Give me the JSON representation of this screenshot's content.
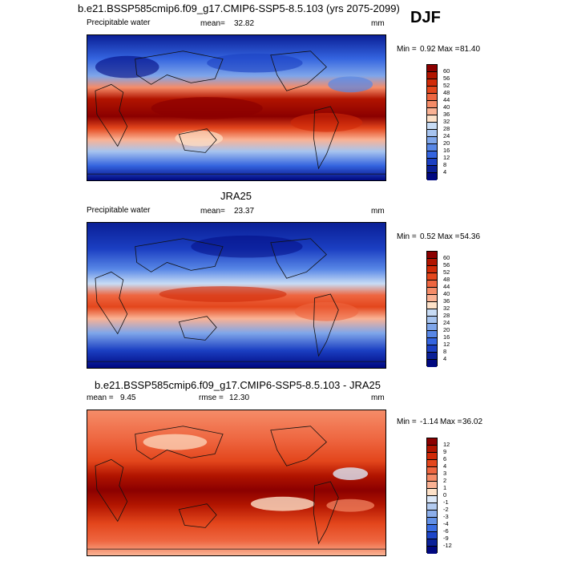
{
  "season": "DJF",
  "chart_data": [
    {
      "type": "heatmap",
      "title": "b.e21.BSSP585cmip6.f09_g17.CMIP6-SSP5-8.5.103 (yrs 2075-2099)",
      "variable": "Precipitable water",
      "stat_label": "mean=",
      "stat_value": "32.82",
      "units": "mm",
      "min_label": "Min =",
      "min_value": "0.92",
      "max_label": "Max =",
      "max_value": "81.40",
      "levels": [
        "60",
        "56",
        "52",
        "48",
        "44",
        "40",
        "36",
        "32",
        "28",
        "24",
        "20",
        "16",
        "12",
        "8",
        "4"
      ],
      "colors": [
        "#8b0000",
        "#b11400",
        "#d02a08",
        "#e3461c",
        "#ee6640",
        "#f58c68",
        "#fab294",
        "#fde1c8",
        "#c8dcf5",
        "#a7c4ef",
        "#7fa6ea",
        "#5887e6",
        "#3464df",
        "#1b3fc2",
        "#0a1f96",
        "#000880"
      ]
    },
    {
      "type": "heatmap",
      "title": "JRA25",
      "variable": "Precipitable water",
      "stat_label": "mean=",
      "stat_value": "23.37",
      "units": "mm",
      "min_label": "Min =",
      "min_value": "0.52",
      "max_label": "Max =",
      "max_value": "54.36",
      "levels": [
        "60",
        "56",
        "52",
        "48",
        "44",
        "40",
        "36",
        "32",
        "28",
        "24",
        "20",
        "16",
        "12",
        "8",
        "4"
      ],
      "colors": [
        "#8b0000",
        "#b11400",
        "#d02a08",
        "#e3461c",
        "#ee6640",
        "#f58c68",
        "#fab294",
        "#fde1c8",
        "#c8dcf5",
        "#a7c4ef",
        "#7fa6ea",
        "#5887e6",
        "#3464df",
        "#1b3fc2",
        "#0a1f96",
        "#000880"
      ]
    },
    {
      "type": "heatmap",
      "title": "b.e21.BSSP585cmip6.f09_g17.CMIP6-SSP5-8.5.103 - JRA25",
      "stat_label": "mean =",
      "stat_value": "9.45",
      "rmse_label": "rmse =",
      "rmse_value": "12.30",
      "units": "mm",
      "min_label": "Min =",
      "min_value": "-1.14",
      "max_label": "Max =",
      "max_value": "36.02",
      "levels": [
        "12",
        "9",
        "6",
        "4",
        "3",
        "2",
        "1",
        "0",
        "-1",
        "-2",
        "-3",
        "-4",
        "-6",
        "-9",
        "-12"
      ],
      "colors": [
        "#8b0000",
        "#b11400",
        "#d02a08",
        "#e3461c",
        "#ee6640",
        "#f58c68",
        "#fab294",
        "#fde1c8",
        "#dce8f8",
        "#b3cbf0",
        "#8caeea",
        "#6290e6",
        "#3a6de2",
        "#1d45c8",
        "#0a2199",
        "#000880"
      ]
    }
  ]
}
